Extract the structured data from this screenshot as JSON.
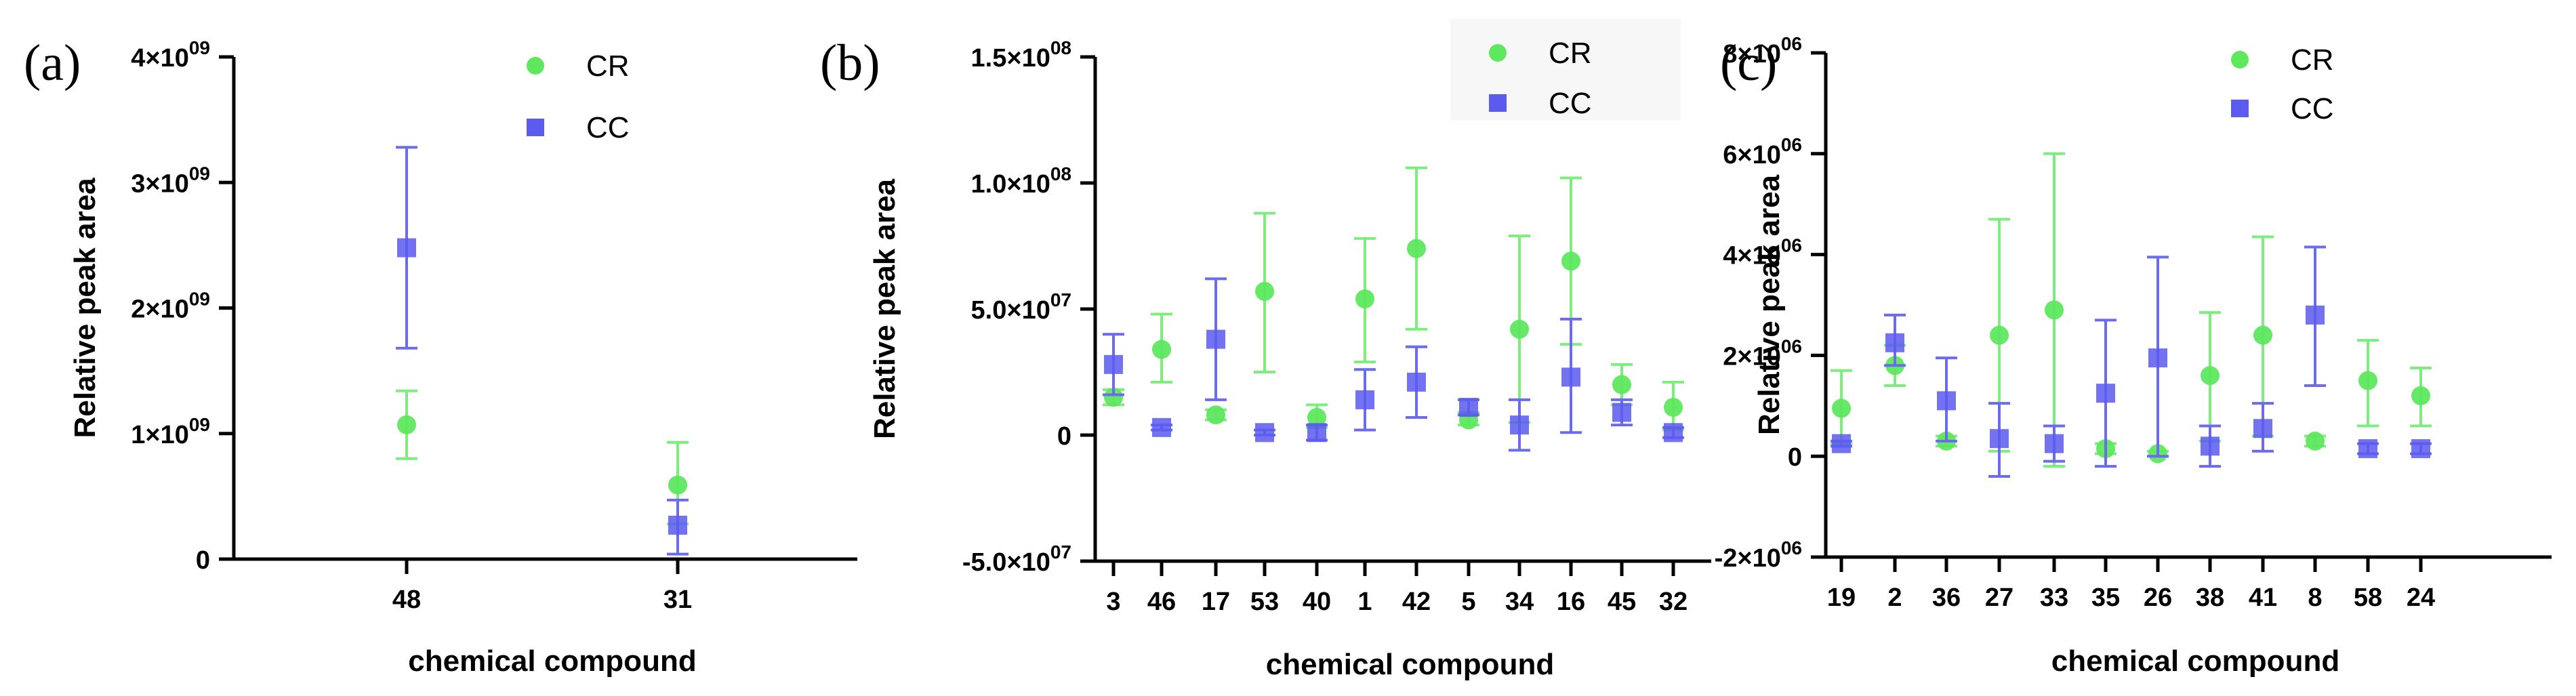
{
  "colors": {
    "CR": "#5ee85e",
    "CC": "#5b5bef",
    "CR_bar": "#7ded7d",
    "CC_bar": "#6b6bf0"
  },
  "legend": {
    "cr_label": "CR",
    "cc_label": "CC"
  },
  "chart_data": [
    {
      "type": "scatter",
      "panel_label": "(a)",
      "xlabel": "chemical compound",
      "ylabel": "Relative peak area",
      "ylim": [
        0,
        4000000000
      ],
      "yticks": [
        {
          "value": 0,
          "mant": "0",
          "exp": ""
        },
        {
          "value": 1000000000,
          "mant": "1×10",
          "exp": "09"
        },
        {
          "value": 2000000000,
          "mant": "2×10",
          "exp": "09"
        },
        {
          "value": 3000000000,
          "mant": "3×10",
          "exp": "09"
        },
        {
          "value": 4000000000,
          "mant": "4×10",
          "exp": "09"
        }
      ],
      "categories": [
        "48",
        "31"
      ],
      "series": [
        {
          "name": "CR",
          "values": [
            1070000000,
            590000000
          ],
          "err_low": [
            800000000,
            280000000
          ],
          "err_high": [
            1340000000,
            930000000
          ]
        },
        {
          "name": "CC",
          "values": [
            2480000000,
            270000000
          ],
          "err_low": [
            1680000000,
            40000000
          ],
          "err_high": [
            3280000000,
            470000000
          ]
        }
      ]
    },
    {
      "type": "scatter",
      "panel_label": "(b)",
      "xlabel": "chemical compound",
      "ylabel": "Relative peak area",
      "ylim": [
        -50000000,
        150000000
      ],
      "yticks": [
        {
          "value": -50000000,
          "mant": "-5.0×10",
          "exp": "07"
        },
        {
          "value": 0,
          "mant": "0",
          "exp": ""
        },
        {
          "value": 50000000,
          "mant": "5.0×10",
          "exp": "07"
        },
        {
          "value": 100000000,
          "mant": "1.0×10",
          "exp": "08"
        },
        {
          "value": 150000000,
          "mant": "1.5×10",
          "exp": "08"
        }
      ],
      "categories": [
        "3",
        "46",
        "17",
        "53",
        "40",
        "1",
        "42",
        "5",
        "34",
        "16",
        "45",
        "32"
      ],
      "series": [
        {
          "name": "CR",
          "values": [
            15000000,
            34000000,
            8000000,
            57000000,
            7000000,
            54000000,
            74000000,
            6000000,
            42000000,
            69000000,
            20000000,
            11000000
          ],
          "err_low": [
            12000000,
            21000000,
            6000000,
            25000000,
            3000000,
            29000000,
            42000000,
            4000000,
            5000000,
            36000000,
            12000000,
            2000000
          ],
          "err_high": [
            18000000,
            48000000,
            10000000,
            88000000,
            12000000,
            78000000,
            106000000,
            9000000,
            79000000,
            102000000,
            28000000,
            21000000
          ]
        },
        {
          "name": "CC",
          "values": [
            28000000,
            3000000,
            38000000,
            1000000,
            1000000,
            14000000,
            21000000,
            11000000,
            4000000,
            23000000,
            9000000,
            1000000
          ],
          "err_low": [
            16000000,
            2000000,
            14000000,
            0,
            -2000000,
            2000000,
            7000000,
            8000000,
            -6000000,
            1000000,
            4000000,
            -1000000
          ],
          "err_high": [
            40000000,
            4000000,
            62000000,
            2000000,
            4000000,
            26000000,
            35000000,
            14000000,
            14000000,
            46000000,
            14000000,
            3000000
          ]
        }
      ]
    },
    {
      "type": "scatter",
      "panel_label": "(c)",
      "xlabel": "chemical compound",
      "ylabel": "Relative peak area",
      "ylim": [
        -2000000,
        8000000
      ],
      "yticks": [
        {
          "value": -2000000,
          "mant": "-2×10",
          "exp": "06"
        },
        {
          "value": 0,
          "mant": "0",
          "exp": ""
        },
        {
          "value": 2000000,
          "mant": "2×10",
          "exp": "06"
        },
        {
          "value": 4000000,
          "mant": "4×10",
          "exp": "06"
        },
        {
          "value": 6000000,
          "mant": "6×10",
          "exp": "06"
        },
        {
          "value": 8000000,
          "mant": "8×10",
          "exp": "06"
        }
      ],
      "categories": [
        "19",
        "2",
        "36",
        "27",
        "33",
        "35",
        "26",
        "38",
        "41",
        "8",
        "58",
        "24"
      ],
      "series": [
        {
          "name": "CR",
          "values": [
            950000,
            1800000,
            300000,
            2400000,
            2900000,
            150000,
            50000,
            1600000,
            2400000,
            300000,
            1500000,
            1200000
          ],
          "err_low": [
            250000,
            1400000,
            200000,
            100000,
            -200000,
            50000,
            0,
            300000,
            400000,
            200000,
            600000,
            600000
          ],
          "err_high": [
            1700000,
            2200000,
            400000,
            4700000,
            6000000,
            250000,
            100000,
            2850000,
            4350000,
            400000,
            2300000,
            1750000
          ]
        },
        {
          "name": "CC",
          "values": [
            250000,
            2250000,
            1100000,
            350000,
            250000,
            1250000,
            1950000,
            200000,
            550000,
            2800000,
            150000,
            150000
          ],
          "err_low": [
            200000,
            1800000,
            300000,
            -400000,
            -100000,
            -200000,
            0,
            -200000,
            100000,
            1400000,
            50000,
            50000
          ],
          "err_high": [
            300000,
            2800000,
            1950000,
            1050000,
            600000,
            2700000,
            3950000,
            600000,
            1050000,
            4150000,
            250000,
            250000
          ]
        }
      ]
    }
  ]
}
